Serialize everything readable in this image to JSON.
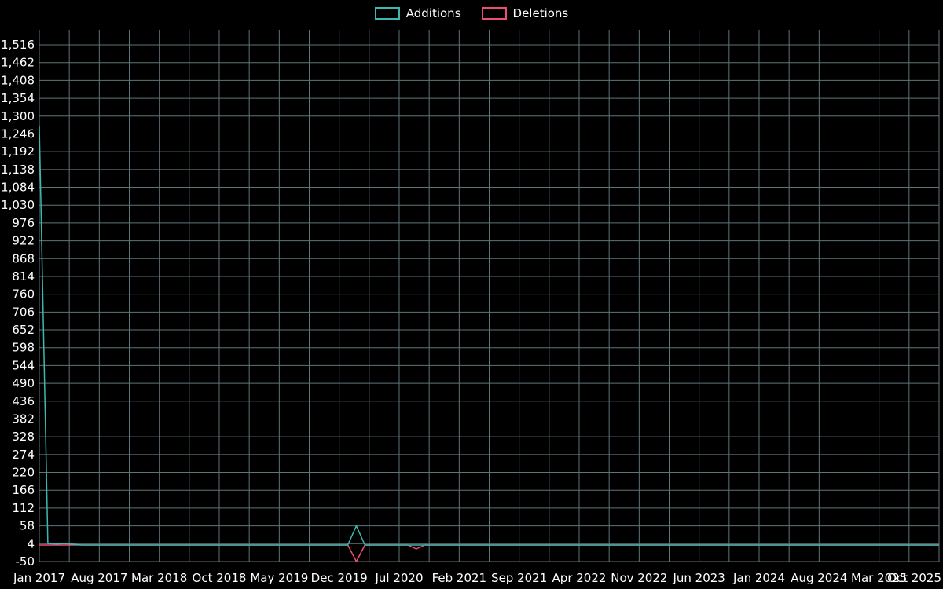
{
  "page": {
    "background": "#000000",
    "text_color": "#ffffff"
  },
  "legend": {
    "items": [
      {
        "label": "Additions",
        "color": "#3db8b0"
      },
      {
        "label": "Deletions",
        "color": "#ee4d76"
      }
    ]
  },
  "chart_data": {
    "type": "line",
    "title": "",
    "xlabel": "",
    "ylabel": "",
    "legend_position": "top-center",
    "grid": {
      "show": true,
      "color": "#5f7478",
      "vertical_lines": 31,
      "horizontal_lines": 30
    },
    "x_axis": {
      "start_month": "Jan 2017",
      "end_month": "Oct 2025",
      "months_count": 106,
      "tick_labels": [
        "Jan 2017",
        "Aug 2017",
        "Mar 2018",
        "Oct 2018",
        "May 2019",
        "Dec 2019",
        "Jul 2020",
        "Feb 2021",
        "Sep 2021",
        "Apr 2022",
        "Nov 2022",
        "Jun 2023",
        "Jan 2024",
        "Aug 2024",
        "Mar 2025",
        "Oct 2025"
      ]
    },
    "y_axis": {
      "min": -50,
      "max": 1516,
      "tick_step": 54,
      "tick_labels": [
        "1,516",
        "1,462",
        "1,408",
        "1,354",
        "1,300",
        "1,246",
        "1,192",
        "1,138",
        "1,084",
        "1,030",
        "976",
        "922",
        "868",
        "814",
        "760",
        "706",
        "652",
        "598",
        "544",
        "490",
        "436",
        "382",
        "328",
        "274",
        "220",
        "166",
        "112",
        "58",
        "4",
        "-50"
      ]
    },
    "series": [
      {
        "name": "Additions",
        "color": "#3db8b0",
        "default_value": 0,
        "points": [
          {
            "x": "Jan 2017",
            "y": 1270
          },
          {
            "x": "Feb 2017",
            "y": 4
          },
          {
            "x": "Mar 2017",
            "y": 3
          },
          {
            "x": "Apr 2017",
            "y": 4
          },
          {
            "x": "May 2017",
            "y": 2
          },
          {
            "x": "Feb 2020",
            "y": 58
          }
        ]
      },
      {
        "name": "Deletions",
        "color": "#ee4d76",
        "default_value": 0,
        "points": [
          {
            "x": "Feb 2020",
            "y": -50
          },
          {
            "x": "Sep 2020",
            "y": -12
          }
        ]
      }
    ]
  }
}
